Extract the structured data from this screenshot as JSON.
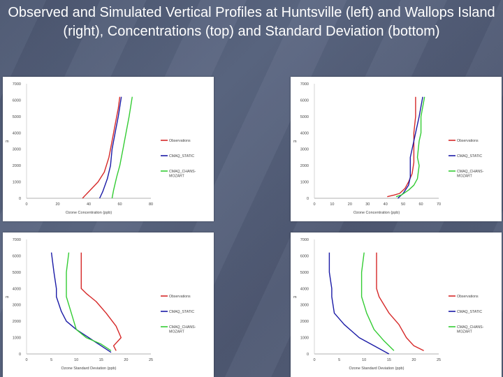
{
  "slide": {
    "title": "Observed and Simulated Vertical Profiles at Huntsville (left) and Wallops Island (right), Concentrations (top) and Standard Deviation (bottom)"
  },
  "colors": {
    "observations": "#d62828",
    "static": "#1a1aa6",
    "mozart": "#33cc33"
  },
  "chart_data": [
    {
      "type": "line",
      "xlabel": "Ozone Concentration (ppb)",
      "ylabel": "m",
      "xlim": [
        0,
        80
      ],
      "ylim": [
        0,
        7000
      ],
      "xticks": [
        0,
        20,
        40,
        60,
        80
      ],
      "yticks": [
        0,
        1000,
        2000,
        3000,
        4000,
        5000,
        6000,
        7000
      ],
      "legend_position": "right",
      "series": [
        {
          "name": "Observations",
          "color": "#d62828",
          "points": [
            [
              36,
              0
            ],
            [
              38,
              200
            ],
            [
              42,
              600
            ],
            [
              46,
              1000
            ],
            [
              50,
              1600
            ],
            [
              53,
              2500
            ],
            [
              55,
              3500
            ],
            [
              57,
              4500
            ],
            [
              59,
              5500
            ],
            [
              60,
              6200
            ]
          ]
        },
        {
          "name": "CMAQ_STATIC",
          "color": "#1a1aa6",
          "points": [
            [
              47,
              0
            ],
            [
              49,
              400
            ],
            [
              52,
              1200
            ],
            [
              54,
              2000
            ],
            [
              55,
              3000
            ],
            [
              57,
              4000
            ],
            [
              59,
              5000
            ],
            [
              61,
              6200
            ]
          ]
        },
        {
          "name": "CMAQ_CHANS-MOZART",
          "color": "#33cc33",
          "points": [
            [
              55,
              0
            ],
            [
              56,
              500
            ],
            [
              58,
              1300
            ],
            [
              60,
              2000
            ],
            [
              62,
              3000
            ],
            [
              64,
              4000
            ],
            [
              66,
              5000
            ],
            [
              68,
              6200
            ]
          ]
        }
      ]
    },
    {
      "type": "line",
      "xlabel": "Ozone Concentration (ppb)",
      "ylabel": "m",
      "xlim": [
        0,
        70
      ],
      "ylim": [
        0,
        7000
      ],
      "xticks": [
        0,
        10,
        20,
        30,
        40,
        50,
        60,
        70
      ],
      "yticks": [
        0,
        1000,
        2000,
        3000,
        4000,
        5000,
        6000,
        7000
      ],
      "legend_position": "right",
      "series": [
        {
          "name": "Observations",
          "color": "#d62828",
          "points": [
            [
              41,
              100
            ],
            [
              45,
              200
            ],
            [
              48,
              300
            ],
            [
              51,
              600
            ],
            [
              53,
              1000
            ],
            [
              55,
              1500
            ],
            [
              56,
              2200
            ],
            [
              56,
              3000
            ],
            [
              56,
              4000
            ],
            [
              57,
              5000
            ],
            [
              57,
              6200
            ]
          ]
        },
        {
          "name": "CMAQ_STATIC",
          "color": "#1a1aa6",
          "points": [
            [
              47,
              0
            ],
            [
              50,
              300
            ],
            [
              53,
              800
            ],
            [
              54,
              1300
            ],
            [
              54,
              2000
            ],
            [
              54,
              2500
            ],
            [
              56,
              3500
            ],
            [
              57,
              4000
            ],
            [
              59,
              5000
            ],
            [
              61,
              6200
            ]
          ]
        },
        {
          "name": "CMAQ_CHANS-MOZART",
          "color": "#33cc33",
          "points": [
            [
              46,
              100
            ],
            [
              49,
              200
            ],
            [
              53,
              500
            ],
            [
              56,
              800
            ],
            [
              58,
              1200
            ],
            [
              59,
              2000
            ],
            [
              58,
              2500
            ],
            [
              59,
              3500
            ],
            [
              60,
              4000
            ],
            [
              60,
              5000
            ],
            [
              62,
              6200
            ]
          ]
        }
      ]
    },
    {
      "type": "line",
      "xlabel": "Ozone Standard Deviation (ppb)",
      "ylabel": "m",
      "xlim": [
        0,
        25
      ],
      "ylim": [
        0,
        7000
      ],
      "xticks": [
        0,
        5,
        10,
        15,
        20,
        25
      ],
      "yticks": [
        0,
        1000,
        2000,
        3000,
        4000,
        5000,
        6000,
        7000
      ],
      "legend_position": "right",
      "series": [
        {
          "name": "Observations",
          "color": "#d62828",
          "points": [
            [
              18,
              200
            ],
            [
              17.5,
              500
            ],
            [
              19,
              1000
            ],
            [
              18,
              1700
            ],
            [
              16,
              2500
            ],
            [
              14,
              3200
            ],
            [
              12,
              3700
            ],
            [
              11,
              4000
            ],
            [
              11,
              5000
            ],
            [
              11,
              6200
            ]
          ]
        },
        {
          "name": "CMAQ_STATIC",
          "color": "#1a1aa6",
          "points": [
            [
              17,
              100
            ],
            [
              15,
              500
            ],
            [
              12.5,
              1000
            ],
            [
              10,
              1500
            ],
            [
              8,
              2000
            ],
            [
              7,
              2600
            ],
            [
              6,
              3500
            ],
            [
              6,
              4000
            ],
            [
              5.5,
              5000
            ],
            [
              5,
              6200
            ]
          ]
        },
        {
          "name": "CMAQ_CHANS-MOZART",
          "color": "#33cc33",
          "points": [
            [
              17,
              200
            ],
            [
              15,
              600
            ],
            [
              12,
              1000
            ],
            [
              10,
              1500
            ],
            [
              9,
              2500
            ],
            [
              8,
              3500
            ],
            [
              8,
              4000
            ],
            [
              8,
              5000
            ],
            [
              8.5,
              6200
            ]
          ]
        }
      ]
    },
    {
      "type": "line",
      "xlabel": "Ozone Standard Deviation (ppb)",
      "ylabel": "m",
      "xlim": [
        0,
        25
      ],
      "ylim": [
        0,
        7000
      ],
      "xticks": [
        0,
        5,
        10,
        15,
        20,
        25
      ],
      "yticks": [
        0,
        1000,
        2000,
        3000,
        4000,
        5000,
        6000,
        7000
      ],
      "legend_position": "right",
      "series": [
        {
          "name": "Observations",
          "color": "#d62828",
          "points": [
            [
              22,
              200
            ],
            [
              20,
              500
            ],
            [
              18.5,
              1000
            ],
            [
              17,
              1800
            ],
            [
              15,
              2500
            ],
            [
              14,
              3000
            ],
            [
              13,
              3500
            ],
            [
              12.5,
              4000
            ],
            [
              12.5,
              5000
            ],
            [
              12.5,
              6200
            ]
          ]
        },
        {
          "name": "CMAQ_STATIC",
          "color": "#1a1aa6",
          "points": [
            [
              15,
              0
            ],
            [
              12,
              500
            ],
            [
              9,
              1000
            ],
            [
              6,
              1800
            ],
            [
              4,
              2500
            ],
            [
              3.5,
              3500
            ],
            [
              3.5,
              4000
            ],
            [
              3,
              5000
            ],
            [
              3,
              6200
            ]
          ]
        },
        {
          "name": "CMAQ_CHANS-MOZART",
          "color": "#33cc33",
          "points": [
            [
              16,
              200
            ],
            [
              14,
              800
            ],
            [
              12,
              1500
            ],
            [
              10.5,
              2500
            ],
            [
              10,
              3000
            ],
            [
              9.5,
              3500
            ],
            [
              9.5,
              4000
            ],
            [
              9.5,
              5000
            ],
            [
              10,
              6200
            ]
          ]
        }
      ]
    }
  ]
}
